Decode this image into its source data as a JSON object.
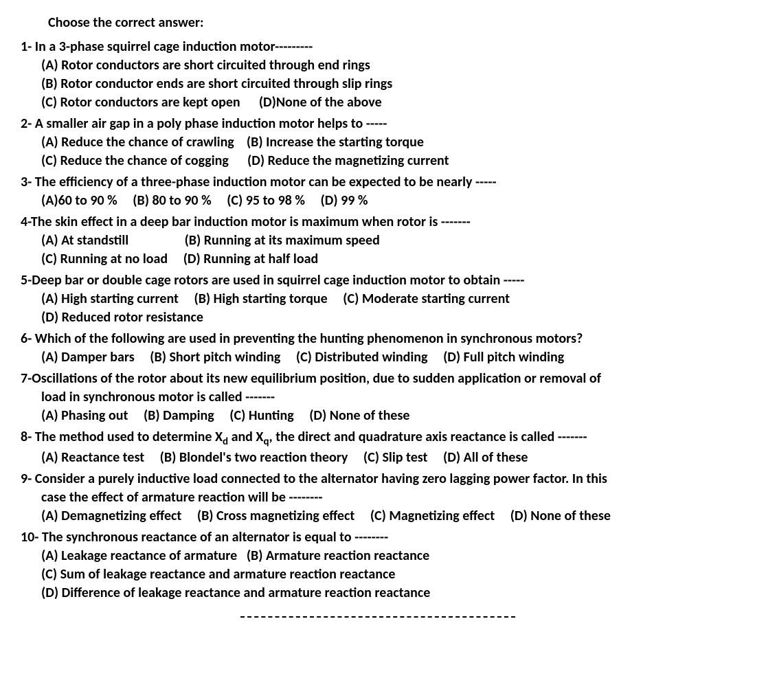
{
  "heading": "Choose the correct answer:",
  "q1": {
    "stem": "1- In a 3-phase squirrel cage induction motor---------",
    "a": "(A) Rotor conductors are short circuited through end rings",
    "b": "(B) Rotor conductor ends are short circuited through slip rings",
    "c": "(C) Rotor conductors are kept open",
    "d": "(D)None of the above"
  },
  "q2": {
    "stem": "2- A smaller air gap in a poly phase induction motor helps to -----",
    "a": "(A) Reduce the chance of crawling",
    "b": "(B) Increase the starting torque",
    "c": "(C) Reduce the chance of cogging",
    "d": "(D) Reduce the magnetizing current"
  },
  "q3": {
    "stem": "3- The efficiency of a three-phase induction motor can be expected to be nearly -----",
    "a": "(A)60 to 90 %",
    "b": "(B)  80 to 90 %",
    "c": "(C) 95 to 98 %",
    "d": "(D) 99 %"
  },
  "q4": {
    "stem": "4-The skin effect in a deep bar induction motor is maximum when rotor is -------",
    "a": "(A) At standstill",
    "b": "(B) Running at its maximum speed",
    "c": "(C) Running at no load",
    "d": "(D) Running at half load"
  },
  "q5": {
    "stem": "5-Deep bar or double cage rotors are used in squirrel cage induction motor to obtain -----",
    "a": "(A) High starting current",
    "b": "(B) High starting torque",
    "c": "(C) Moderate starting current",
    "d": "(D) Reduced rotor resistance"
  },
  "q6": {
    "stem": "6- Which of the following are used in preventing the hunting phenomenon in synchronous motors?",
    "a": "(A) Damper bars",
    "b": "(B) Short pitch winding",
    "c": "(C) Distributed winding",
    "d": "(D) Full pitch winding"
  },
  "q7": {
    "stem1": "7-Oscillations of the rotor about its new equilibrium position, due to sudden application or removal of",
    "stem2": "load in synchronous motor is called -------",
    "a": "(A) Phasing out",
    "b": "(B) Damping",
    "c": "(C) Hunting",
    "d": "(D) None of these"
  },
  "q8": {
    "stem_pre": "8-  The method used to determine X",
    "sub1": "d",
    "stem_mid": " and X",
    "sub2": "q",
    "stem_post": ", the direct and quadrature axis reactance is called -------",
    "a": "(A) Reactance test",
    "b": "(B) Blondel's two reaction theory",
    "c": "(C) Slip test",
    "d": "(D) All of these"
  },
  "q9": {
    "stem1": "9- Consider a purely inductive load connected to the alternator having zero lagging power factor. In this",
    "stem2": "case the effect of armature reaction will be --------",
    "a": "(A) Demagnetizing effect",
    "b": "(B) Cross magnetizing effect",
    "c": "(C) Magnetizing effect",
    "d": "(D) None of these"
  },
  "q10": {
    "stem": "10- The synchronous reactance of an alternator is equal to --------",
    "a": "(A) Leakage reactance of armature",
    "b": "(B) Armature reaction reactance",
    "c": "(C) Sum of leakage reactance and armature reaction reactance",
    "d": "(D) Difference of leakage reactance and armature reaction reactance"
  }
}
